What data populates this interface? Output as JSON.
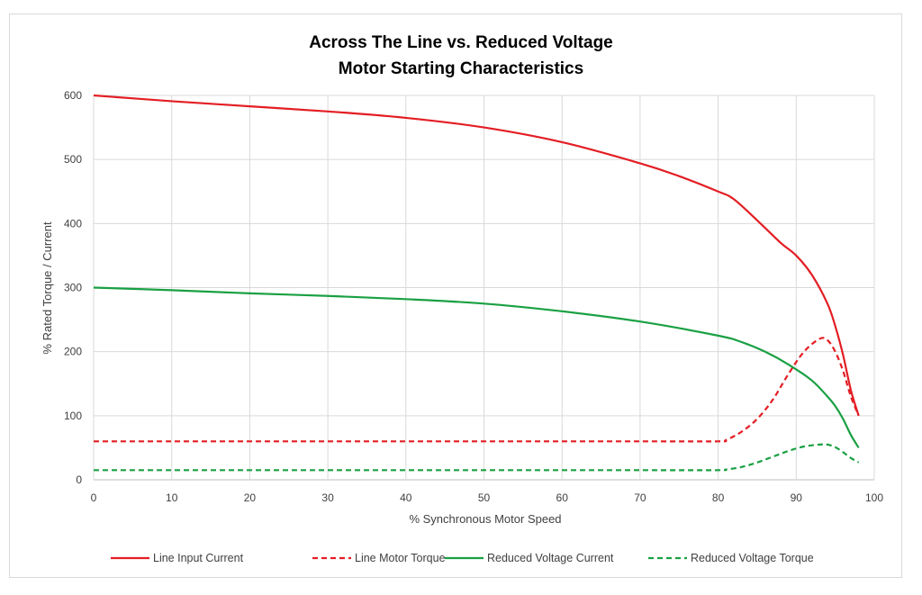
{
  "chart_data": {
    "type": "line",
    "title_line1": "Across The Line vs. Reduced Voltage",
    "title_line2": "Motor Starting Characteristics",
    "xlabel": "% Synchronous Motor Speed",
    "ylabel": "% Rated Torque / Current",
    "xlim": [
      0,
      100
    ],
    "ylim": [
      0,
      600
    ],
    "xticks": [
      "0",
      "10",
      "20",
      "30",
      "40",
      "50",
      "60",
      "70",
      "80",
      "90",
      "100"
    ],
    "yticks": [
      "0",
      "100",
      "200",
      "300",
      "400",
      "500",
      "600"
    ],
    "grid": true,
    "legend_position": "bottom",
    "series": [
      {
        "name": "Line Input Current",
        "color": "#e31e24",
        "dash": "solid",
        "x": [
          0,
          10,
          20,
          30,
          40,
          50,
          60,
          70,
          75,
          80,
          82,
          85,
          88,
          90,
          92,
          94,
          95,
          96,
          97,
          98
        ],
        "y": [
          600,
          591,
          583,
          575,
          565,
          550,
          527,
          494,
          474,
          450,
          438,
          405,
          370,
          350,
          320,
          275,
          240,
          195,
          140,
          100
        ]
      },
      {
        "name": "Line Motor Torque",
        "color": "#e31e24",
        "dash": "dashed",
        "x": [
          0,
          10,
          20,
          30,
          40,
          50,
          60,
          70,
          80,
          81,
          83,
          85,
          87,
          89,
          91,
          93,
          94,
          95,
          96,
          97,
          98
        ],
        "y": [
          60,
          60,
          60,
          60,
          60,
          60,
          60,
          60,
          60,
          62,
          75,
          95,
          125,
          165,
          200,
          220,
          218,
          200,
          170,
          130,
          100
        ]
      },
      {
        "name": "Reduced Voltage Current",
        "color": "#1aa043",
        "dash": "solid",
        "x": [
          0,
          10,
          20,
          30,
          40,
          50,
          60,
          70,
          80,
          83,
          86,
          89,
          92,
          94,
          95,
          96,
          97,
          98
        ],
        "y": [
          300,
          296,
          291,
          287,
          282,
          275,
          263,
          247,
          225,
          215,
          200,
          180,
          155,
          130,
          115,
          95,
          70,
          50
        ]
      },
      {
        "name": "Reduced Voltage Torque",
        "color": "#1aa043",
        "dash": "dashed",
        "x": [
          0,
          10,
          20,
          30,
          40,
          50,
          60,
          70,
          80,
          81,
          83,
          85,
          87,
          89,
          91,
          93,
          94,
          95,
          96,
          97,
          98
        ],
        "y": [
          15,
          15,
          15,
          15,
          15,
          15,
          15,
          15,
          15,
          16,
          20,
          27,
          36,
          45,
          52,
          55,
          55,
          51,
          43,
          34,
          27
        ]
      }
    ]
  }
}
